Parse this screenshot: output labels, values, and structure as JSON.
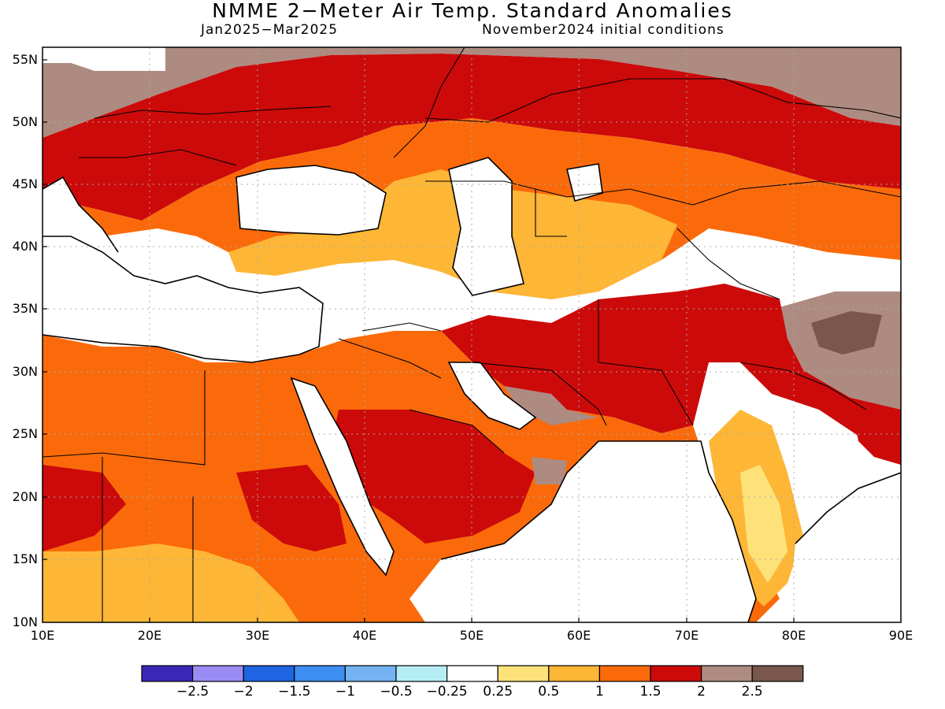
{
  "title": "NMME 2−Meter Air Temp. Standard Anomalies",
  "subtitle_left": "Jan2025−Mar2025",
  "subtitle_right": "November2024 initial conditions",
  "lat_labels": [
    "55N",
    "50N",
    "45N",
    "40N",
    "35N",
    "30N",
    "25N",
    "20N",
    "15N",
    "10N"
  ],
  "lon_labels": [
    "10E",
    "20E",
    "30E",
    "40E",
    "50E",
    "60E",
    "70E",
    "80E",
    "90E"
  ],
  "colorbar": {
    "colors": [
      "#3a27b8",
      "#9b8cf5",
      "#1f64e0",
      "#3c8ef0",
      "#74b2f2",
      "#b4eef4",
      "#ffffff",
      "#fde27a",
      "#fdb636",
      "#fb6a0a",
      "#cc0a0a",
      "#ad8b80",
      "#7a574d"
    ],
    "labels": [
      "−2.5",
      "−2",
      "−1.5",
      "−1",
      "−0.5",
      "−0.25",
      "0.25",
      "0.5",
      "1",
      "1.5",
      "2",
      "2.5"
    ]
  },
  "map_extent": {
    "lon": [
      10,
      90
    ],
    "lat": [
      10,
      56
    ]
  }
}
